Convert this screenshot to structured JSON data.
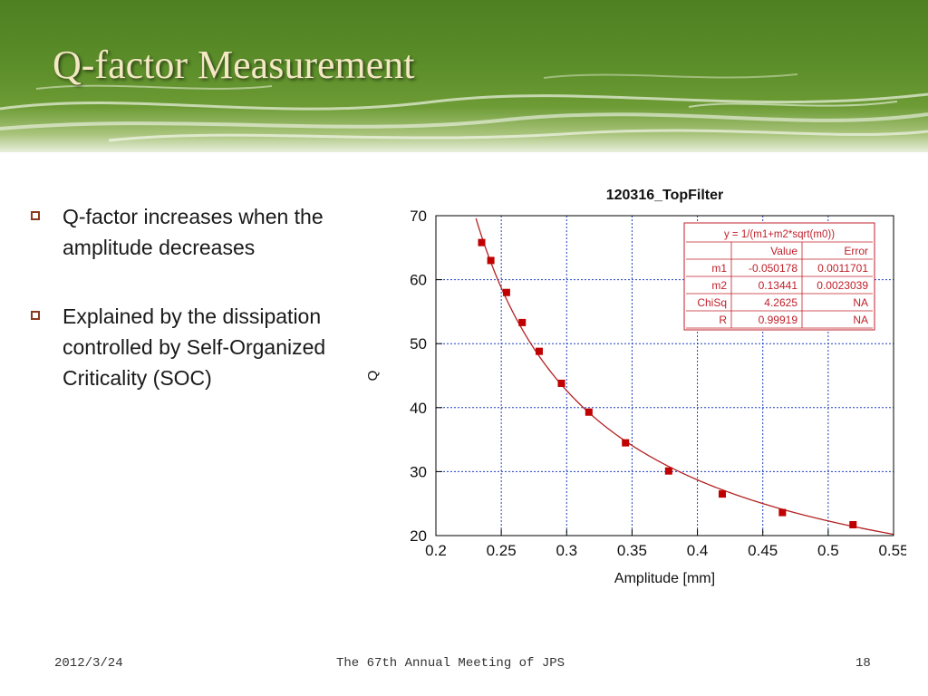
{
  "slide": {
    "title": "Q-factor Measurement",
    "bullets": [
      "Q-factor increases when the amplitude decreases",
      "Explained by the dissipation controlled by Self-Organized Criticality (SOC)"
    ],
    "bullet_color": "#8b3a1e"
  },
  "footer": {
    "date": "2012/3/24",
    "meeting": "The 67th Annual Meeting of JPS",
    "page": "18"
  },
  "chart_data": {
    "type": "scatter",
    "title": "120316_TopFilter",
    "xlabel": "Amplitude [mm]",
    "ylabel": "Q",
    "xlim": [
      0.2,
      0.55
    ],
    "ylim": [
      20,
      70
    ],
    "xticks": [
      0.2,
      0.25,
      0.3,
      0.35,
      0.4,
      0.45,
      0.5,
      0.55
    ],
    "yticks": [
      20,
      30,
      40,
      50,
      60,
      70
    ],
    "grid": true,
    "marker_color": "#c00000",
    "fit_color": "#b22222",
    "series": [
      {
        "x": [
          0.235,
          0.242,
          0.254,
          0.266,
          0.279,
          0.296,
          0.317,
          0.345,
          0.378,
          0.419,
          0.465,
          0.519
        ],
        "y": [
          65.8,
          63.0,
          58.0,
          53.3,
          48.8,
          43.8,
          39.3,
          34.5,
          30.1,
          26.5,
          23.6,
          21.7
        ]
      }
    ],
    "fit": {
      "m1": -0.050178,
      "m2": 0.13441
    },
    "fit_table": {
      "equation": "y = 1/(m1+m2*sqrt(m0))",
      "header": [
        "",
        "Value",
        "Error"
      ],
      "rows": [
        [
          "m1",
          "-0.050178",
          "0.0011701"
        ],
        [
          "m2",
          "0.13441",
          "0.0023039"
        ],
        [
          "ChiSq",
          "4.2625",
          "NA"
        ],
        [
          "R",
          "0.99919",
          "NA"
        ]
      ]
    }
  }
}
